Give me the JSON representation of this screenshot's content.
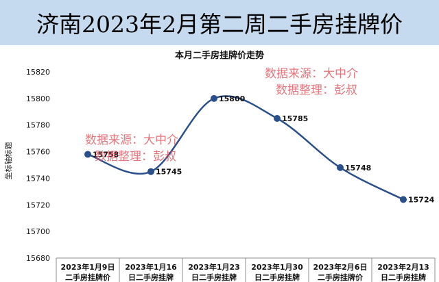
{
  "banner": {
    "title": "济南2023年2月第二周二手房挂牌价",
    "background": "#c5d9ef"
  },
  "watermarks": [
    {
      "line1": "数据来源：大中介",
      "line2": "数据整理：彭叔"
    },
    {
      "line1": "数据来源：大中介",
      "line2": "数据整理：彭叔"
    }
  ],
  "chart_data": {
    "type": "line",
    "title": "本月二手房挂牌价走势",
    "xlabel": "",
    "ylabel": "坐标轴标题",
    "ylim": [
      15680,
      15820
    ],
    "yticks": [
      15680,
      15700,
      15720,
      15740,
      15760,
      15780,
      15800,
      15820
    ],
    "grid": false,
    "smooth": true,
    "line_color": "#2a4f8a",
    "categories": [
      [
        "2023年1月9日",
        "二手房挂牌价"
      ],
      [
        "2023年1月16",
        "日二手房挂牌"
      ],
      [
        "2023年1月23",
        "日二手房挂牌"
      ],
      [
        "2023年1月30",
        "日二手房挂牌"
      ],
      [
        "2023年2月6日",
        "二手房挂牌价"
      ],
      [
        "2023年2月13",
        "日二手房挂牌"
      ]
    ],
    "values": [
      15758,
      15745,
      15800,
      15785,
      15748,
      15724
    ]
  }
}
